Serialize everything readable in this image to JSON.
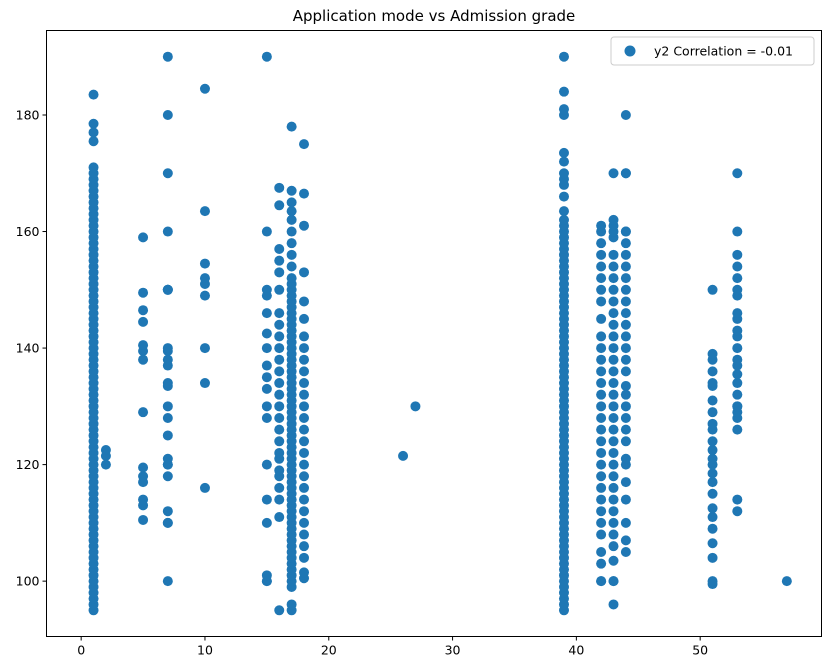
{
  "chart_data": {
    "type": "scatter",
    "title": "Application mode vs Admission grade",
    "xlabel": "",
    "ylabel": "",
    "xlim": [
      -2.8,
      59.8
    ],
    "ylim": [
      90.5,
      194.5
    ],
    "xticks": [
      0,
      10,
      20,
      30,
      40,
      50
    ],
    "yticks": [
      100,
      120,
      140,
      160,
      180
    ],
    "grid": false,
    "legend": {
      "position": "top-right",
      "entries": [
        "y2 Correlation = -0.01"
      ]
    },
    "series": [
      {
        "name": "y2 Correlation = -0.01",
        "color": "#1f77b4",
        "columns": [
          {
            "x": 1,
            "y": [
              95,
              96,
              97,
              98,
              99,
              100,
              101,
              102,
              103,
              104,
              105,
              106,
              107,
              108,
              109,
              110,
              111,
              112,
              113,
              114,
              115,
              116,
              117,
              118,
              119,
              120,
              121,
              122,
              123,
              124,
              125,
              126,
              127,
              128,
              129,
              130,
              131,
              132,
              133,
              134,
              135,
              136,
              137,
              138,
              139,
              140,
              141,
              142,
              143,
              144,
              145,
              146,
              147,
              148,
              149,
              150,
              151,
              152,
              153,
              154,
              155,
              156,
              157,
              158,
              159,
              160,
              161,
              162,
              163,
              164,
              165,
              166,
              167,
              168,
              169,
              170,
              171,
              175.5,
              177,
              178.5,
              183.5
            ]
          },
          {
            "x": 2,
            "y": [
              120,
              121.5,
              122.5
            ]
          },
          {
            "x": 5,
            "y": [
              110.5,
              113,
              114,
              117,
              118,
              119.5,
              129,
              138,
              139.5,
              140.5,
              144.5,
              146.5,
              149.5,
              159
            ]
          },
          {
            "x": 7,
            "y": [
              100,
              110,
              110,
              112,
              118,
              120,
              120,
              121,
              125,
              128,
              130,
              133.5,
              134,
              137,
              138,
              139.5,
              140,
              150,
              150,
              150,
              160,
              170,
              180,
              190
            ]
          },
          {
            "x": 10,
            "y": [
              116,
              134,
              140,
              149,
              151,
              152,
              154.5,
              163.5,
              184.5
            ]
          },
          {
            "x": 15,
            "y": [
              100,
              100,
              101,
              110,
              114,
              120,
              128,
              130,
              133,
              135,
              137,
              140,
              142.5,
              146,
              149,
              150,
              160,
              190
            ]
          },
          {
            "x": 16,
            "y": [
              95,
              111,
              114,
              116,
              118,
              119,
              121,
              122,
              124,
              126,
              128,
              130,
              132,
              134,
              136,
              138,
              140,
              142,
              144,
              146,
              150,
              153,
              155,
              157,
              164.5,
              167.5
            ]
          },
          {
            "x": 17,
            "y": [
              95,
              96,
              99,
              100,
              101,
              102,
              103,
              104,
              105,
              106,
              107,
              108,
              109,
              110,
              111,
              112,
              113,
              114,
              115,
              116,
              117,
              118,
              119,
              120,
              121,
              122,
              123,
              124,
              125,
              126,
              127,
              128,
              129,
              130,
              131,
              132,
              133,
              134,
              135,
              136,
              137,
              138,
              139,
              140,
              141,
              142,
              143,
              144,
              145,
              146,
              147,
              148,
              149,
              150,
              151,
              152,
              154,
              156,
              158,
              160,
              162,
              163.5,
              165,
              167,
              178
            ]
          },
          {
            "x": 18,
            "y": [
              100.5,
              101.5,
              104,
              106,
              108,
              110,
              112,
              114,
              116,
              118,
              120,
              122,
              124,
              126,
              128,
              130,
              132,
              134,
              136,
              138,
              140,
              142,
              145,
              148,
              153,
              161,
              166.5,
              175
            ]
          },
          {
            "x": 26,
            "y": [
              121.5
            ]
          },
          {
            "x": 27,
            "y": [
              130
            ]
          },
          {
            "x": 39,
            "y": [
              95,
              96,
              97,
              98,
              99,
              100,
              101,
              102,
              103,
              104,
              105,
              106,
              107,
              108,
              109,
              110,
              111,
              112,
              113,
              114,
              115,
              116,
              117,
              118,
              119,
              120,
              121,
              122,
              123,
              124,
              125,
              126,
              127,
              128,
              129,
              130,
              131,
              132,
              133,
              134,
              135,
              136,
              137,
              138,
              139,
              140,
              141,
              142,
              143,
              144,
              145,
              146,
              147,
              148,
              149,
              150,
              151,
              152,
              153,
              154,
              155,
              156,
              157,
              158,
              159,
              160,
              161,
              162,
              163.5,
              166,
              168,
              169,
              170,
              172,
              173.5,
              180,
              181,
              184,
              190
            ]
          },
          {
            "x": 42,
            "y": [
              100,
              100,
              103,
              105,
              108,
              110,
              112,
              114,
              116,
              118,
              120,
              122,
              124,
              126,
              128,
              130,
              132,
              134,
              136,
              138,
              140,
              142,
              145,
              148,
              150,
              152,
              154,
              156,
              158,
              160,
              161
            ]
          },
          {
            "x": 43,
            "y": [
              96,
              100,
              100,
              103.5,
              106,
              108,
              110,
              112,
              114,
              116,
              118,
              120,
              122,
              124,
              126,
              128,
              130,
              132,
              134,
              136,
              138,
              140,
              142,
              144,
              146,
              148,
              150,
              152,
              154,
              156,
              159,
              160,
              161,
              162,
              170
            ]
          },
          {
            "x": 44,
            "y": [
              105,
              107,
              110,
              114,
              117,
              120,
              121,
              124,
              126,
              128,
              130,
              132,
              133.5,
              136,
              138,
              140,
              142,
              144,
              146,
              148,
              150,
              152,
              154,
              156,
              158,
              160,
              160,
              170,
              170,
              180
            ]
          },
          {
            "x": 51,
            "y": [
              99.5,
              100,
              104,
              106.5,
              109,
              111,
              112.5,
              115,
              117,
              118.5,
              120,
              121,
              122.5,
              124,
              126,
              127,
              129,
              131,
              133.5,
              134,
              136,
              138,
              139,
              150
            ]
          },
          {
            "x": 53,
            "y": [
              112,
              114,
              126,
              128,
              129,
              130,
              130,
              132,
              134,
              135.5,
              137,
              138,
              140,
              142,
              143,
              145,
              146,
              149,
              150,
              152,
              154,
              156,
              160,
              170
            ]
          },
          {
            "x": 57,
            "y": [
              100
            ]
          }
        ]
      }
    ]
  }
}
